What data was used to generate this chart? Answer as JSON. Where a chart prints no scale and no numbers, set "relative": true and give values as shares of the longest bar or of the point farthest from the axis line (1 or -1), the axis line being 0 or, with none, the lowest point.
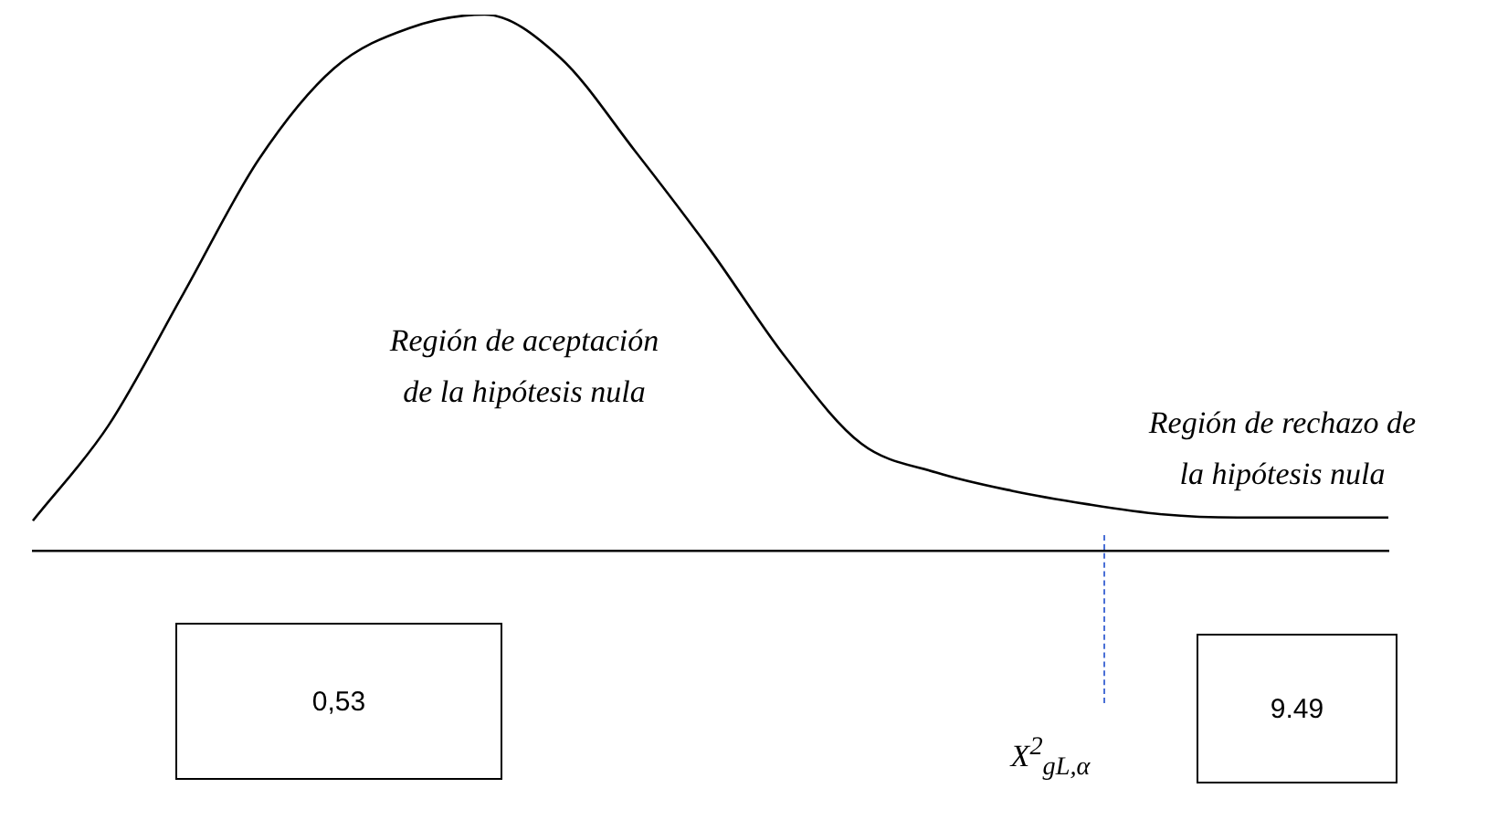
{
  "chart_data": {
    "type": "line",
    "relative": true,
    "categories": [
      null,
      null,
      null,
      null,
      null,
      null,
      null,
      null,
      null,
      null,
      null,
      null,
      null,
      null,
      null,
      null,
      null,
      null,
      null
    ],
    "series": [
      {
        "color": "#000000",
        "values": [
          0.056,
          0.233,
          0.48,
          0.73,
          0.9,
          0.975,
          1,
          0.92,
          0.745,
          0.56,
          0.36,
          0.2,
          0.146,
          0.112,
          0.087,
          0.068,
          0.062,
          0.062,
          0.062
        ]
      }
    ],
    "annotations": [
      "Región de aceptación de la hipótesis nula",
      "Región de rechazo de la hipótesis nula",
      "0,53",
      "9.49",
      "X$^{2}$$_{gL,α}$"
    ],
    "grid": false,
    "legend": false,
    "marker": "none",
    "line_style": "solid"
  }
}
